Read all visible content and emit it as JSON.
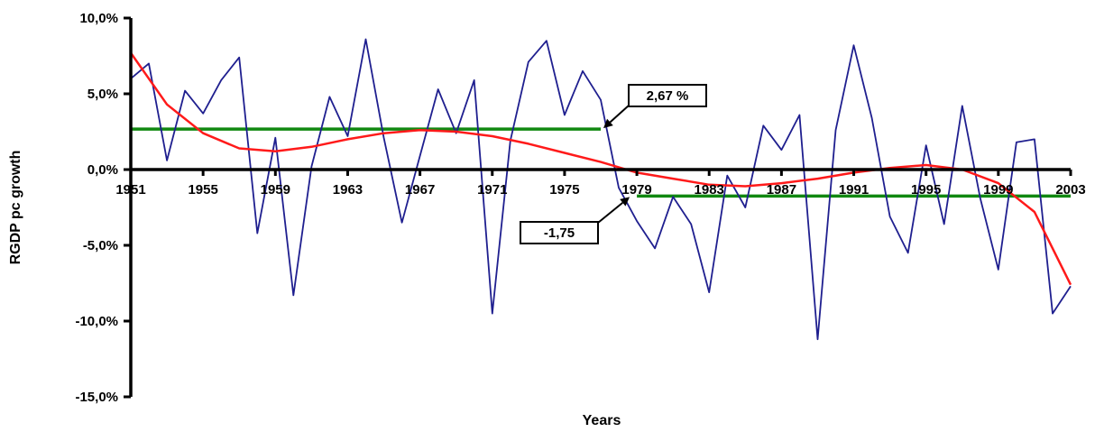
{
  "chart_data": {
    "type": "line",
    "title": "",
    "xlabel": "Years",
    "ylabel": "RGDP pc growth",
    "xlim": [
      1951,
      2003
    ],
    "ylim": [
      -15,
      10
    ],
    "x_ticks": [
      1951,
      1955,
      1959,
      1963,
      1967,
      1971,
      1975,
      1979,
      1983,
      1987,
      1991,
      1995,
      1999,
      2003
    ],
    "x_tick_labels": [
      "1951",
      "1955",
      "1959",
      "1963",
      "1967",
      "1971",
      "1975",
      "1979",
      "1983",
      "1987",
      "1991",
      "1995",
      "1999",
      "2003"
    ],
    "y_ticks": [
      10,
      5,
      0,
      -5,
      -10,
      -15
    ],
    "y_tick_labels": [
      "10,0%",
      "5,0%",
      "0,0%",
      "-5,0%",
      "-10,0%",
      "-15,0%"
    ],
    "grid": false,
    "legend": "none",
    "series": [
      {
        "kind": "growth",
        "color": "#1f1f8f",
        "x": [
          1951,
          1952,
          1953,
          1954,
          1955,
          1956,
          1957,
          1958,
          1959,
          1960,
          1961,
          1962,
          1963,
          1964,
          1965,
          1966,
          1967,
          1968,
          1969,
          1970,
          1971,
          1972,
          1973,
          1974,
          1975,
          1976,
          1977,
          1978,
          1979,
          1980,
          1981,
          1982,
          1983,
          1984,
          1985,
          1986,
          1987,
          1988,
          1989,
          1990,
          1991,
          1992,
          1993,
          1994,
          1995,
          1996,
          1997,
          1998,
          1999,
          2000,
          2001,
          2002,
          2003
        ],
        "values": [
          6.0,
          7.0,
          0.6,
          5.2,
          3.7,
          5.9,
          7.4,
          -4.2,
          2.1,
          -8.3,
          0.2,
          4.8,
          2.2,
          8.6,
          2.1,
          -3.5,
          0.9,
          5.3,
          2.4,
          5.9,
          -9.5,
          1.9,
          7.1,
          8.5,
          3.6,
          6.5,
          4.6,
          -1.2,
          -3.4,
          -5.2,
          -1.8,
          -3.6,
          -8.1,
          -0.4,
          -2.5,
          2.9,
          1.3,
          3.6,
          -11.2,
          2.6,
          8.2,
          3.4,
          -3.1,
          -5.5,
          1.6,
          -3.6,
          4.2,
          -1.9,
          -6.6,
          1.8,
          2.0,
          -9.5,
          -7.7
        ]
      },
      {
        "kind": "trend",
        "color": "#ff1a1a",
        "x": [
          1951,
          1953,
          1955,
          1957,
          1959,
          1961,
          1963,
          1965,
          1967,
          1969,
          1971,
          1973,
          1975,
          1977,
          1979,
          1981,
          1983,
          1985,
          1987,
          1989,
          1991,
          1993,
          1995,
          1997,
          1999,
          2001,
          2003
        ],
        "values": [
          7.7,
          4.3,
          2.4,
          1.4,
          1.2,
          1.5,
          2.0,
          2.4,
          2.6,
          2.5,
          2.2,
          1.7,
          1.1,
          0.5,
          -0.2,
          -0.6,
          -1.0,
          -1.1,
          -0.9,
          -0.6,
          -0.2,
          0.1,
          0.3,
          0.0,
          -0.9,
          -2.8,
          -7.6
        ]
      }
    ],
    "reference_lines": [
      {
        "x0": 1951,
        "x1": 1977,
        "y": 2.67,
        "color": "#118811"
      },
      {
        "x0": 1979,
        "x1": 2003,
        "y": -1.75,
        "color": "#118811"
      }
    ],
    "annotations": [
      {
        "text": "2,67 %",
        "arrow_to_x": 1977,
        "arrow_to_y": 2.67
      },
      {
        "text": "-1,75",
        "arrow_to_x": 1979,
        "arrow_to_y": -1.75
      }
    ]
  }
}
